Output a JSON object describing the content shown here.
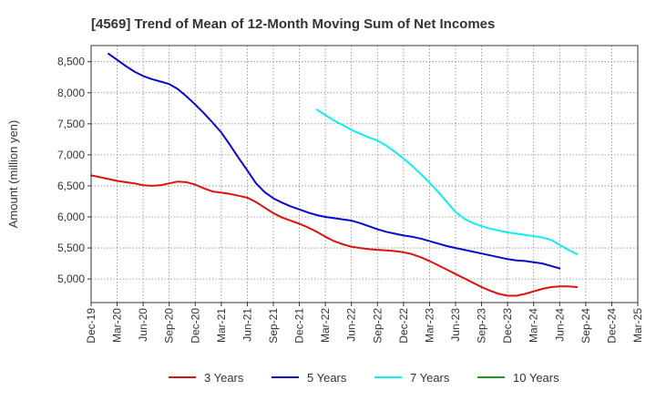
{
  "chart_data": {
    "type": "line",
    "title": "[4569]  Trend of Mean of 12-Month Moving Sum of Net Incomes",
    "xlabel": "",
    "ylabel": "Amount (million yen)",
    "ylim": [
      4620,
      8760
    ],
    "yticks": [
      5000,
      5500,
      6000,
      6500,
      7000,
      7500,
      8000,
      8500
    ],
    "ytick_labels": [
      "5,000",
      "5,500",
      "6,000",
      "6,500",
      "7,000",
      "7,500",
      "8,000",
      "8,500"
    ],
    "xticks": [
      "Dec-19",
      "Mar-20",
      "Jun-20",
      "Sep-20",
      "Dec-20",
      "Mar-21",
      "Jun-21",
      "Sep-21",
      "Dec-21",
      "Mar-22",
      "Jun-22",
      "Sep-22",
      "Dec-22",
      "Mar-23",
      "Jun-23",
      "Sep-23",
      "Dec-23",
      "Mar-24",
      "Jun-24",
      "Sep-24",
      "Dec-24",
      "Mar-25"
    ],
    "grid": true,
    "legend_position": "bottom",
    "series": [
      {
        "name": "3 Years",
        "color": "#dd1111",
        "start_index": 0,
        "values": [
          6670,
          6640,
          6610,
          6580,
          6560,
          6540,
          6510,
          6500,
          6510,
          6540,
          6570,
          6560,
          6520,
          6460,
          6410,
          6390,
          6370,
          6340,
          6310,
          6240,
          6150,
          6060,
          5990,
          5940,
          5890,
          5830,
          5760,
          5680,
          5610,
          5560,
          5520,
          5500,
          5480,
          5470,
          5460,
          5450,
          5430,
          5400,
          5350,
          5290,
          5220,
          5150,
          5080,
          5010,
          4940,
          4870,
          4810,
          4760,
          4730,
          4730,
          4760,
          4800,
          4840,
          4870,
          4880,
          4880,
          4870
        ]
      },
      {
        "name": "5 Years",
        "color": "#0a0ac8",
        "start_index": 2,
        "values": [
          8630,
          8530,
          8430,
          8340,
          8270,
          8220,
          8180,
          8140,
          8060,
          7940,
          7810,
          7670,
          7520,
          7360,
          7160,
          6950,
          6750,
          6540,
          6400,
          6300,
          6230,
          6170,
          6120,
          6070,
          6030,
          6000,
          5980,
          5960,
          5940,
          5900,
          5850,
          5800,
          5760,
          5730,
          5700,
          5680,
          5650,
          5610,
          5570,
          5530,
          5500,
          5470,
          5440,
          5410,
          5380,
          5350,
          5320,
          5300,
          5290,
          5270,
          5250,
          5210,
          5170
        ]
      },
      {
        "name": "7 Years",
        "color": "#11eeee",
        "start_index": 26,
        "values": [
          7730,
          7640,
          7550,
          7480,
          7400,
          7340,
          7280,
          7230,
          7150,
          7050,
          6940,
          6820,
          6690,
          6550,
          6400,
          6240,
          6080,
          5970,
          5900,
          5850,
          5810,
          5780,
          5750,
          5730,
          5710,
          5690,
          5670,
          5630,
          5550,
          5470,
          5400
        ]
      },
      {
        "name": "10 Years",
        "color": "#229922",
        "start_index": 0,
        "values": []
      }
    ]
  }
}
